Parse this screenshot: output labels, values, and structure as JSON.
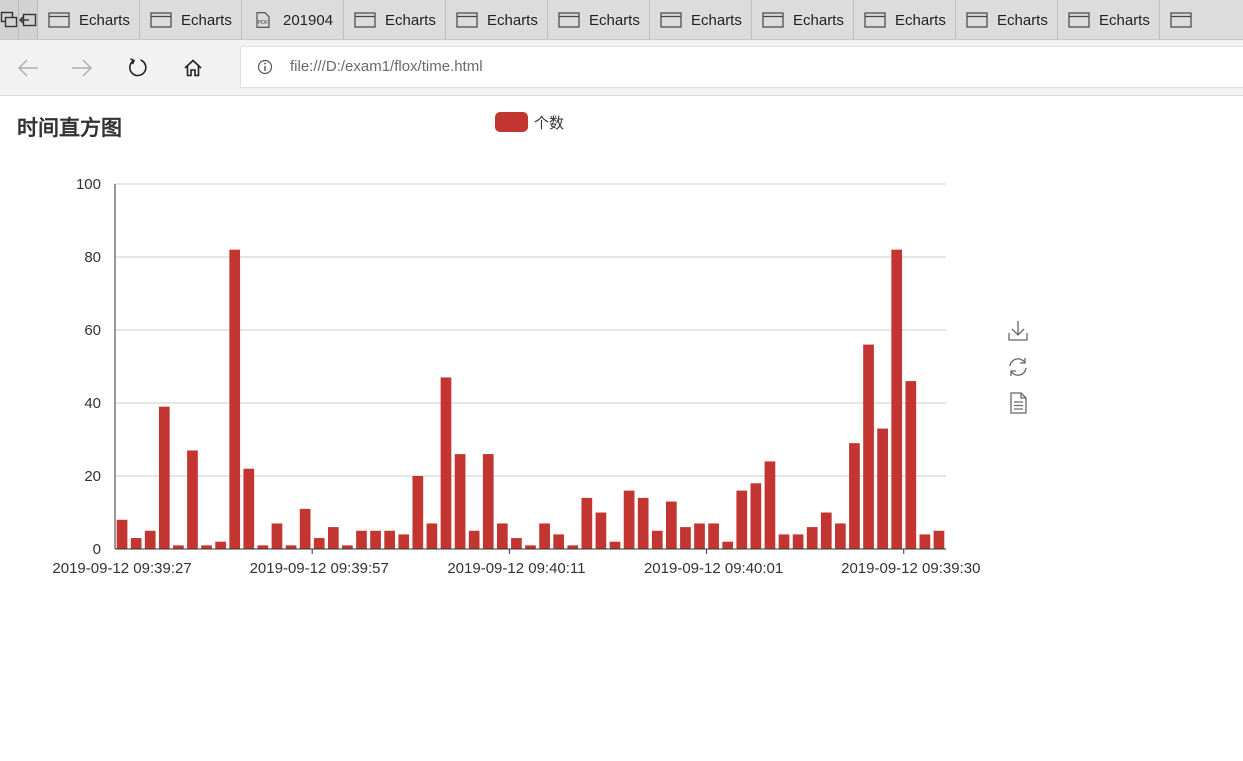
{
  "browser": {
    "tabs": [
      {
        "title": "Echarts",
        "icon": "page-icon"
      },
      {
        "title": "Echarts",
        "icon": "page-icon"
      },
      {
        "title": "201904",
        "icon": "pdf-icon"
      },
      {
        "title": "Echarts",
        "icon": "page-icon"
      },
      {
        "title": "Echarts",
        "icon": "page-icon"
      },
      {
        "title": "Echarts",
        "icon": "page-icon"
      },
      {
        "title": "Echarts",
        "icon": "page-icon"
      },
      {
        "title": "Echarts",
        "icon": "page-icon"
      },
      {
        "title": "Echarts",
        "icon": "page-icon"
      },
      {
        "title": "Echarts",
        "icon": "page-icon"
      },
      {
        "title": "Echarts",
        "icon": "page-icon"
      },
      {
        "title": "",
        "icon": "page-icon"
      }
    ],
    "address": {
      "url": "file:///D:/exam1/flox/time.html"
    }
  },
  "colors": {
    "bar": "#c23531",
    "axis": "#333333",
    "grid": "#cccccc"
  },
  "toolbox": [
    "download-icon",
    "restore-icon",
    "data-view-icon"
  ],
  "chart_data": {
    "type": "bar",
    "title": "时间直方图",
    "legend": {
      "entries": [
        "个数"
      ],
      "placement": "top-center"
    },
    "x_tick_labels": [
      "2019-09-12 09:39:27",
      "2019-09-12 09:39:57",
      "2019-09-12 09:40:11",
      "2019-09-12 09:40:01",
      "2019-09-12 09:39:30"
    ],
    "ylim": [
      0,
      100
    ],
    "y_ticks": [
      0,
      20,
      40,
      60,
      80,
      100
    ],
    "grid": true,
    "series": [
      {
        "name": "个数",
        "values": [
          8,
          3,
          5,
          39,
          1,
          27,
          1,
          2,
          82,
          22,
          1,
          7,
          1,
          11,
          3,
          6,
          1,
          5,
          5,
          5,
          4,
          20,
          7,
          47,
          26,
          5,
          26,
          7,
          3,
          1,
          7,
          4,
          1,
          14,
          10,
          2,
          16,
          14,
          5,
          13,
          6,
          7,
          7,
          2,
          16,
          18,
          24,
          4,
          4,
          6,
          10,
          7,
          29,
          56,
          33,
          82,
          46,
          4,
          5
        ]
      }
    ]
  }
}
